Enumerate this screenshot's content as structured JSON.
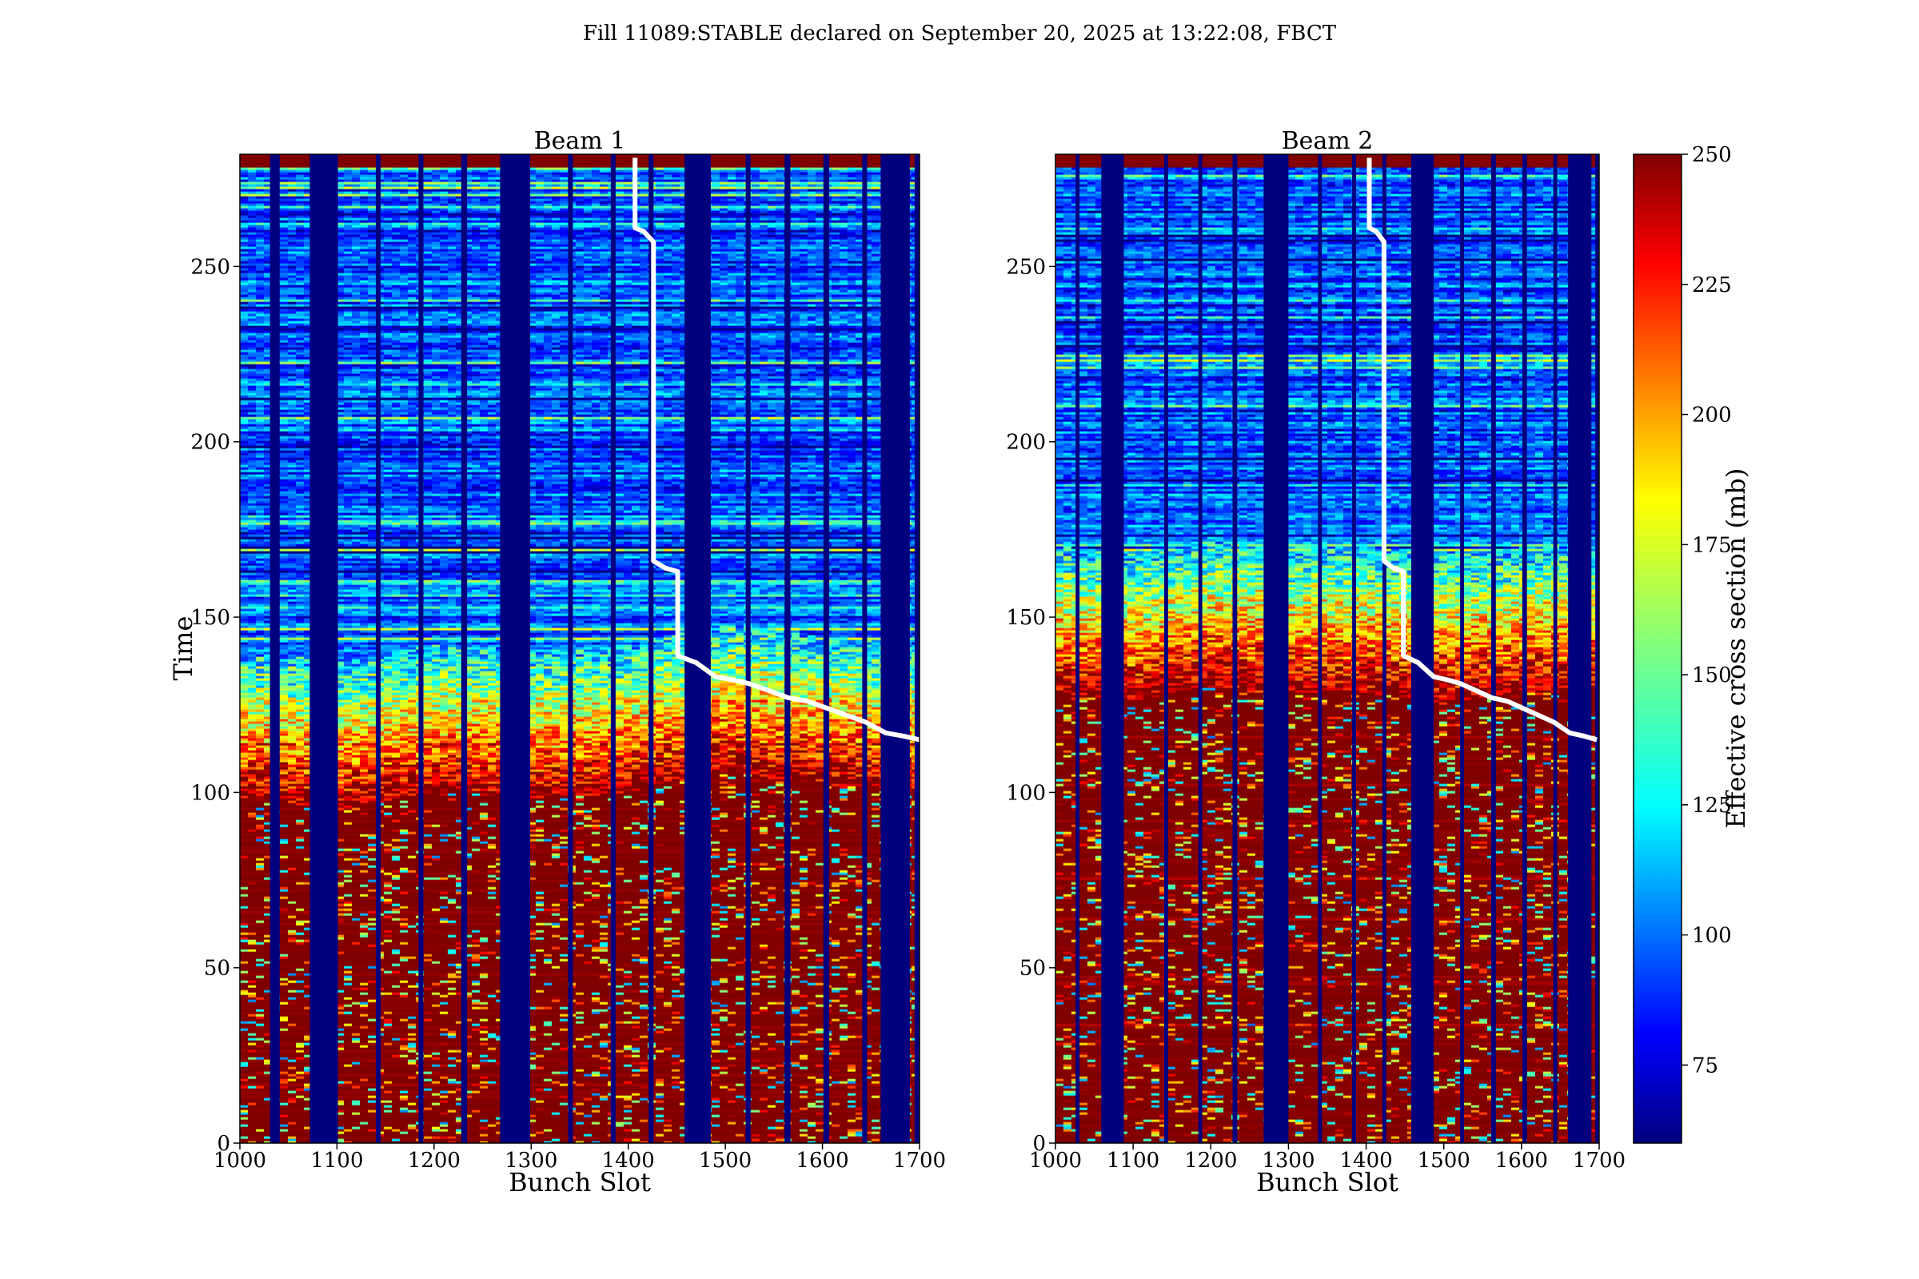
{
  "title": "Fill 11089:STABLE declared on September 20, 2025 at 13:22:08, FBCT",
  "colors": {
    "empty_bunch": "#00007f",
    "overlay_line": "#ffffff",
    "colormap": [
      "#00007f",
      "#0000ff",
      "#007fff",
      "#00ffff",
      "#7fff7f",
      "#ffff00",
      "#ff7f00",
      "#ff0000",
      "#7f0000"
    ]
  },
  "chart_data": [
    {
      "type": "heatmap",
      "title": "Beam 1",
      "xlabel": "Bunch Slot",
      "ylabel": "Time",
      "xlim": [
        1000,
        1700
      ],
      "ylim": [
        0,
        282
      ],
      "xticks": [
        1000,
        1100,
        1200,
        1300,
        1400,
        1500,
        1600,
        1700
      ],
      "yticks": [
        0,
        50,
        100,
        150,
        200,
        250
      ],
      "gaps": [
        [
          1031,
          1041
        ],
        [
          1072,
          1101
        ],
        [
          1140,
          1145
        ],
        [
          1184,
          1189
        ],
        [
          1228,
          1234
        ],
        [
          1268,
          1299
        ],
        [
          1338,
          1343
        ],
        [
          1382,
          1387
        ],
        [
          1421,
          1426
        ],
        [
          1458,
          1485
        ],
        [
          1521,
          1526
        ],
        [
          1561,
          1567
        ],
        [
          1601,
          1607
        ],
        [
          1641,
          1646
        ],
        [
          1660,
          1690
        ],
        [
          1695,
          1700
        ]
      ],
      "transition_time": [
        [
          1000,
          110
        ],
        [
          1100,
          107
        ],
        [
          1200,
          112
        ],
        [
          1300,
          110
        ],
        [
          1400,
          112
        ],
        [
          1500,
          118
        ],
        [
          1600,
          114
        ],
        [
          1700,
          112
        ]
      ],
      "overlay_line": [
        [
          1407,
          281
        ],
        [
          1407,
          261
        ],
        [
          1416,
          260
        ],
        [
          1426,
          257
        ],
        [
          1426,
          166
        ],
        [
          1438,
          164
        ],
        [
          1451,
          163
        ],
        [
          1451,
          139
        ],
        [
          1470,
          137
        ],
        [
          1490,
          133
        ],
        [
          1510,
          132
        ],
        [
          1525,
          131
        ],
        [
          1545,
          129
        ],
        [
          1565,
          127
        ],
        [
          1585,
          126
        ],
        [
          1605,
          124
        ],
        [
          1625,
          122
        ],
        [
          1645,
          120
        ],
        [
          1665,
          117
        ],
        [
          1685,
          116
        ],
        [
          1700,
          115
        ]
      ]
    },
    {
      "type": "heatmap",
      "title": "Beam 2",
      "xlabel": "Bunch Slot",
      "ylabel": "",
      "xlim": [
        1000,
        1700
      ],
      "ylim": [
        0,
        282
      ],
      "xticks": [
        1000,
        1100,
        1200,
        1300,
        1400,
        1500,
        1600,
        1700
      ],
      "yticks": [
        0,
        50,
        100,
        150,
        200,
        250
      ],
      "gaps": [
        [
          1026,
          1031
        ],
        [
          1059,
          1088
        ],
        [
          1140,
          1145
        ],
        [
          1184,
          1189
        ],
        [
          1228,
          1234
        ],
        [
          1268,
          1300
        ],
        [
          1338,
          1343
        ],
        [
          1382,
          1387
        ],
        [
          1421,
          1426
        ],
        [
          1458,
          1487
        ],
        [
          1521,
          1526
        ],
        [
          1561,
          1567
        ],
        [
          1601,
          1607
        ],
        [
          1641,
          1646
        ],
        [
          1660,
          1690
        ],
        [
          1695,
          1700
        ]
      ],
      "transition_time": [
        [
          1000,
          140
        ],
        [
          1100,
          138
        ],
        [
          1200,
          142
        ],
        [
          1300,
          140
        ],
        [
          1400,
          140
        ],
        [
          1500,
          138
        ],
        [
          1600,
          140
        ],
        [
          1700,
          141
        ]
      ],
      "overlay_line": [
        [
          1404,
          281
        ],
        [
          1404,
          261
        ],
        [
          1413,
          260
        ],
        [
          1423,
          257
        ],
        [
          1423,
          166
        ],
        [
          1435,
          164
        ],
        [
          1448,
          163
        ],
        [
          1448,
          139
        ],
        [
          1467,
          137
        ],
        [
          1487,
          133
        ],
        [
          1507,
          132
        ],
        [
          1522,
          131
        ],
        [
          1542,
          129
        ],
        [
          1562,
          127
        ],
        [
          1582,
          126
        ],
        [
          1602,
          124
        ],
        [
          1622,
          122
        ],
        [
          1642,
          120
        ],
        [
          1662,
          117
        ],
        [
          1682,
          116
        ],
        [
          1697,
          115
        ]
      ]
    }
  ],
  "colorbar": {
    "label": "Effective cross section (mb)",
    "range": [
      60,
      250
    ],
    "ticks": [
      75,
      100,
      125,
      150,
      175,
      200,
      225,
      250
    ]
  }
}
